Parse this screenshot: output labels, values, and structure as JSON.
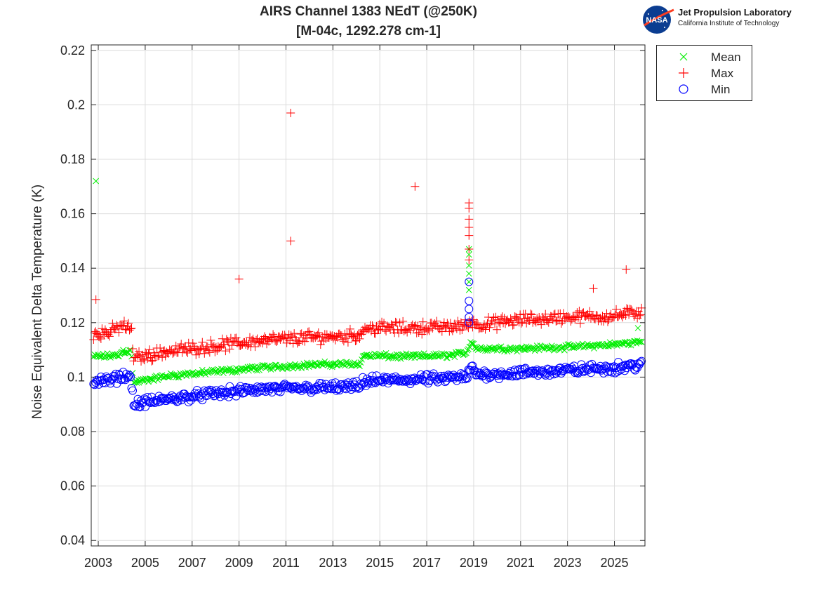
{
  "chart_data": {
    "type": "scatter",
    "title": [
      "AIRS Channel 1383 NEdT (@250K)",
      "[M-04c, 1292.278 cm-1]"
    ],
    "xlabel": "",
    "ylabel": "Noise Equivalent Delta Temperature (K)",
    "xlim": [
      2002.7,
      2026.3
    ],
    "ylim": [
      0.038,
      0.222
    ],
    "xticks": [
      2003,
      2005,
      2007,
      2009,
      2011,
      2013,
      2015,
      2017,
      2019,
      2021,
      2023,
      2025
    ],
    "yticks": [
      0.04,
      0.06,
      0.08,
      0.1,
      0.12,
      0.14,
      0.16,
      0.18,
      0.2,
      0.22
    ],
    "ytick_labels": [
      "0.04",
      "0.06",
      "0.08",
      "0.1",
      "0.12",
      "0.14",
      "0.16",
      "0.18",
      "0.2",
      "0.22"
    ],
    "grid": true,
    "legend_position": "outside-top-right",
    "series": [
      {
        "name": "Mean",
        "marker": "x",
        "color": "#00ee00",
        "trend": [
          [
            2002.8,
            0.1075
          ],
          [
            2003.9,
            0.108
          ],
          [
            2004.0,
            0.1095
          ],
          [
            2004.4,
            0.1095
          ],
          [
            2004.5,
            0.098
          ],
          [
            2006.0,
            0.1005
          ],
          [
            2008.0,
            0.102
          ],
          [
            2010.0,
            0.1035
          ],
          [
            2012.0,
            0.1045
          ],
          [
            2014.2,
            0.105
          ],
          [
            2014.3,
            0.108
          ],
          [
            2016.0,
            0.1075
          ],
          [
            2018.0,
            0.108
          ],
          [
            2018.7,
            0.109
          ],
          [
            2018.9,
            0.1135
          ],
          [
            2019.1,
            0.1105
          ],
          [
            2021.0,
            0.1105
          ],
          [
            2023.0,
            0.111
          ],
          [
            2025.0,
            0.112
          ],
          [
            2026.2,
            0.113
          ]
        ],
        "outliers": [
          [
            2002.9,
            0.172
          ],
          [
            2018.8,
            0.147
          ],
          [
            2018.8,
            0.145
          ],
          [
            2018.8,
            0.141
          ],
          [
            2018.8,
            0.138
          ],
          [
            2018.8,
            0.135
          ],
          [
            2018.8,
            0.132
          ],
          [
            2026.0,
            0.118
          ]
        ]
      },
      {
        "name": "Max",
        "marker": "+",
        "color": "#ff0000",
        "trend": [
          [
            2002.8,
            0.116
          ],
          [
            2003.5,
            0.1165
          ],
          [
            2004.0,
            0.119
          ],
          [
            2004.4,
            0.118
          ],
          [
            2004.5,
            0.107
          ],
          [
            2006.0,
            0.1095
          ],
          [
            2008.0,
            0.1115
          ],
          [
            2010.0,
            0.1135
          ],
          [
            2012.0,
            0.1145
          ],
          [
            2014.2,
            0.1155
          ],
          [
            2014.3,
            0.118
          ],
          [
            2016.0,
            0.118
          ],
          [
            2018.0,
            0.1185
          ],
          [
            2018.7,
            0.119
          ],
          [
            2018.9,
            0.121
          ],
          [
            2019.1,
            0.119
          ],
          [
            2021.0,
            0.121
          ],
          [
            2023.0,
            0.122
          ],
          [
            2025.0,
            0.1225
          ],
          [
            2026.2,
            0.124
          ]
        ],
        "outliers": [
          [
            2002.9,
            0.1285
          ],
          [
            2009.0,
            0.136
          ],
          [
            2011.2,
            0.197
          ],
          [
            2011.2,
            0.15
          ],
          [
            2016.5,
            0.17
          ],
          [
            2018.8,
            0.164
          ],
          [
            2018.8,
            0.162
          ],
          [
            2018.8,
            0.158
          ],
          [
            2018.8,
            0.155
          ],
          [
            2018.8,
            0.152
          ],
          [
            2018.8,
            0.147
          ],
          [
            2018.8,
            0.143
          ],
          [
            2024.1,
            0.1325
          ],
          [
            2025.5,
            0.1395
          ]
        ]
      },
      {
        "name": "Min",
        "marker": "o",
        "color": "#0000ff",
        "trend": [
          [
            2002.8,
            0.0985
          ],
          [
            2003.5,
            0.0985
          ],
          [
            2004.0,
            0.1005
          ],
          [
            2004.4,
            0.1
          ],
          [
            2004.5,
            0.09
          ],
          [
            2006.0,
            0.092
          ],
          [
            2008.0,
            0.094
          ],
          [
            2010.0,
            0.0955
          ],
          [
            2012.0,
            0.096
          ],
          [
            2014.2,
            0.0965
          ],
          [
            2014.3,
            0.0985
          ],
          [
            2016.0,
            0.099
          ],
          [
            2018.0,
            0.0995
          ],
          [
            2018.7,
            0.1
          ],
          [
            2018.9,
            0.1035
          ],
          [
            2019.1,
            0.101
          ],
          [
            2021.0,
            0.1015
          ],
          [
            2023.0,
            0.1025
          ],
          [
            2025.0,
            0.1035
          ],
          [
            2026.2,
            0.1045
          ]
        ],
        "outliers": [
          [
            2018.8,
            0.135
          ],
          [
            2018.8,
            0.128
          ],
          [
            2018.8,
            0.125
          ],
          [
            2018.8,
            0.122
          ],
          [
            2018.8,
            0.12
          ]
        ]
      }
    ]
  },
  "logo": {
    "org": "Jet Propulsion Laboratory",
    "sub": "California Institute of Technology",
    "badge": "NASA"
  },
  "colors": {
    "axis": "#262626",
    "grid": "#dcdcdc",
    "nasa_blue": "#0b3d91",
    "nasa_red": "#fc3d21"
  }
}
